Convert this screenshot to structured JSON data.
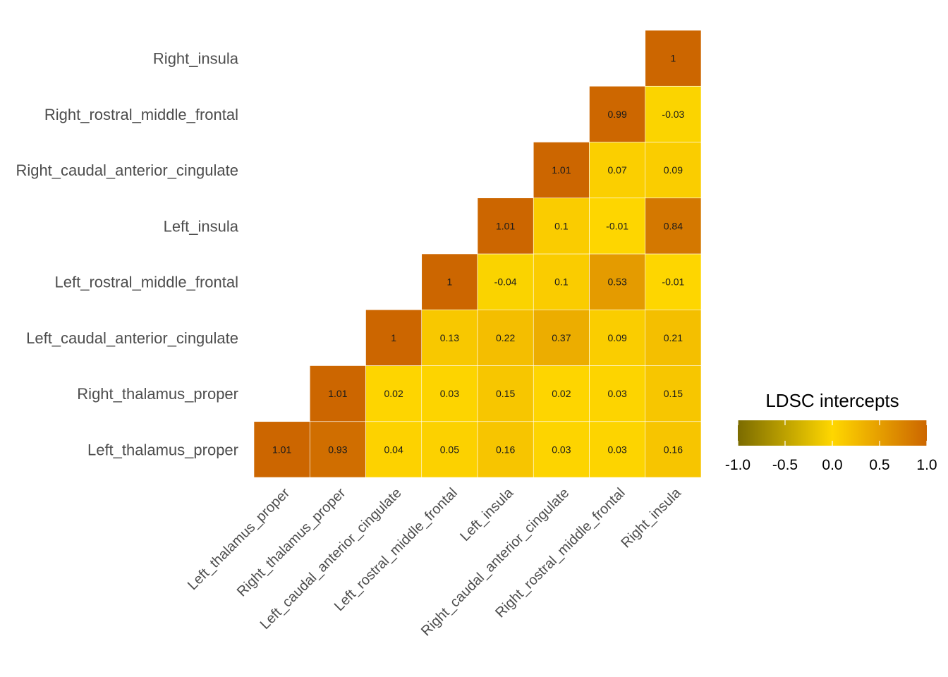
{
  "chart_data": {
    "type": "heatmap",
    "title": "",
    "xlabel": "",
    "ylabel": "",
    "layout": "lower-triangle",
    "labels": [
      "Left_thalamus_proper",
      "Right_thalamus_proper",
      "Left_caudal_anterior_cingulate",
      "Left_rostral_middle_frontal",
      "Left_insula",
      "Right_caudal_anterior_cingulate",
      "Right_rostral_middle_frontal",
      "Right_insula"
    ],
    "matrix": [
      [
        1.01,
        0.93,
        0.04,
        0.05,
        0.16,
        0.03,
        0.03,
        0.16
      ],
      [
        null,
        1.01,
        0.02,
        0.03,
        0.15,
        0.02,
        0.03,
        0.15
      ],
      [
        null,
        null,
        1,
        0.13,
        0.22,
        0.37,
        0.09,
        0.21
      ],
      [
        null,
        null,
        null,
        1,
        -0.04,
        0.1,
        0.53,
        -0.01
      ],
      [
        null,
        null,
        null,
        null,
        1.01,
        0.1,
        -0.01,
        0.84
      ],
      [
        null,
        null,
        null,
        null,
        null,
        1.01,
        0.07,
        0.09
      ],
      [
        null,
        null,
        null,
        null,
        null,
        null,
        0.99,
        -0.03
      ],
      [
        null,
        null,
        null,
        null,
        null,
        null,
        null,
        1
      ]
    ],
    "legend": {
      "title": "LDSC intercepts",
      "placement": "right",
      "range": [
        -1,
        1
      ],
      "ticks": [
        "-1.0",
        "-0.5",
        "0.0",
        "0.5",
        "1.0"
      ],
      "colors": {
        "low": "#7b6b00",
        "mid": "#ffd700",
        "high": "#cc6600"
      }
    },
    "grid": false
  }
}
